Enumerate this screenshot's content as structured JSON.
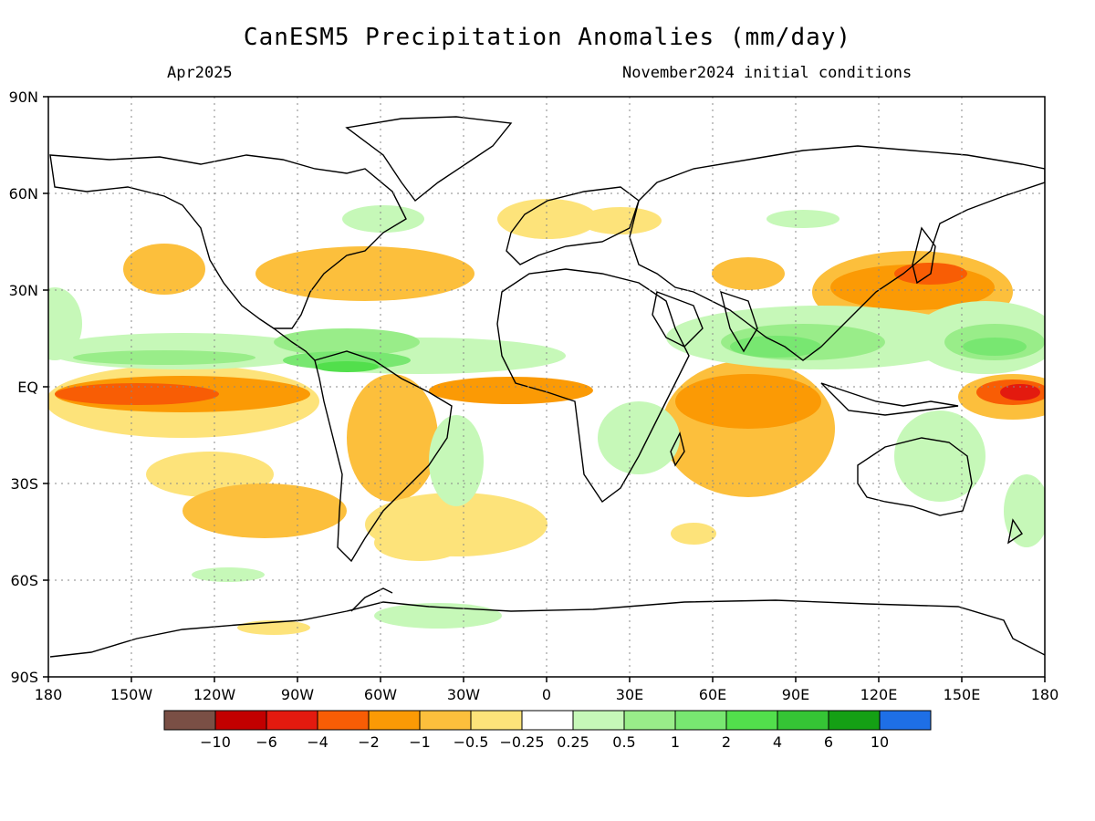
{
  "title": "CanESM5 Precipitation Anomalies (mm/day)",
  "subtitle_left": "Apr2025",
  "subtitle_right": "November2024 initial conditions",
  "map": {
    "lat_labels": [
      "90N",
      "60N",
      "30N",
      "EQ",
      "30S",
      "60S",
      "90S"
    ],
    "lon_labels": [
      "180",
      "150W",
      "120W",
      "90W",
      "60W",
      "30W",
      "0",
      "30E",
      "60E",
      "90E",
      "120E",
      "150E",
      "180"
    ],
    "projection": "equirectangular global",
    "grid": "dotted every 30 degrees"
  },
  "colorbar": {
    "colors": [
      "#7a4f45",
      "#c20000",
      "#e31a0f",
      "#f85d05",
      "#fb9a05",
      "#fcbf3c",
      "#fde37a",
      "#ffffff",
      "#c6f8b8",
      "#99ed89",
      "#78e771",
      "#52df4c",
      "#35c535",
      "#14a014",
      "#1e6fe6"
    ],
    "labels": [
      "-10",
      "-6",
      "-4",
      "-2",
      "-1",
      "-0.5",
      "-0.25",
      "0.25",
      "0.5",
      "1",
      "2",
      "4",
      "6",
      "10"
    ]
  },
  "anomaly_colors": {
    "dry_strong": "#e31a0f",
    "dry_mod": "#f85d05",
    "dry": "#fb9a05",
    "dry_light": "#fcbf3c",
    "dry_faint": "#fde37a",
    "wet_faint": "#c6f8b8",
    "wet_light": "#99ed89",
    "wet": "#78e771",
    "wet_mod": "#52df4c"
  }
}
